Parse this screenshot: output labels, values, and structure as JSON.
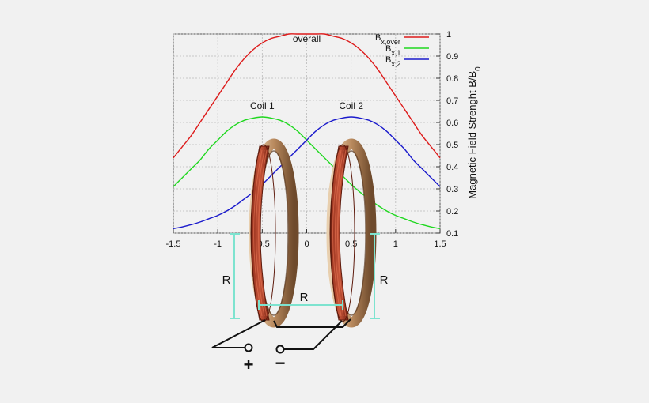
{
  "chart_data": {
    "type": "line",
    "title": "",
    "xlabel": "",
    "ylabel": "Magnetic Field Strenght B/B",
    "ylabel_subscript": "0",
    "xlim": [
      -1.5,
      1.5
    ],
    "ylim": [
      0.1,
      1.0
    ],
    "x_ticks": [
      "-1.5",
      "-1",
      "-0.5",
      "0",
      "0.5",
      "1",
      "1.5"
    ],
    "y_ticks": [
      "0.1",
      "0.2",
      "0.3",
      "0.4",
      "0.5",
      "0.6",
      "0.7",
      "0.8",
      "0.9",
      "1"
    ],
    "grid": true,
    "legend_position": "top-right",
    "x": [
      -1.5,
      -1.4,
      -1.3,
      -1.2,
      -1.1,
      -1.0,
      -0.9,
      -0.8,
      -0.7,
      -0.6,
      -0.5,
      -0.4,
      -0.3,
      -0.2,
      -0.1,
      0.0,
      0.1,
      0.2,
      0.3,
      0.4,
      0.5,
      0.6,
      0.7,
      0.8,
      0.9,
      1.0,
      1.1,
      1.2,
      1.3,
      1.4,
      1.5
    ],
    "series": [
      {
        "name": "B",
        "subscript": "x,over",
        "color": "#dd1a1a",
        "values": [
          0.44,
          0.49,
          0.54,
          0.6,
          0.66,
          0.72,
          0.78,
          0.84,
          0.89,
          0.93,
          0.96,
          0.98,
          0.99,
          1.0,
          1.0,
          1.0,
          1.0,
          1.0,
          0.99,
          0.98,
          0.96,
          0.93,
          0.89,
          0.84,
          0.78,
          0.72,
          0.66,
          0.6,
          0.54,
          0.49,
          0.44
        ]
      },
      {
        "name": "B",
        "subscript": "x,1",
        "color": "#1fd81f",
        "values": [
          0.31,
          0.35,
          0.39,
          0.43,
          0.48,
          0.52,
          0.56,
          0.59,
          0.61,
          0.62,
          0.625,
          0.62,
          0.61,
          0.59,
          0.56,
          0.52,
          0.48,
          0.44,
          0.4,
          0.36,
          0.32,
          0.285,
          0.255,
          0.225,
          0.2,
          0.18,
          0.165,
          0.15,
          0.138,
          0.128,
          0.12
        ]
      },
      {
        "name": "B",
        "subscript": "x,2",
        "color": "#1a1acc",
        "values": [
          0.12,
          0.128,
          0.138,
          0.15,
          0.165,
          0.18,
          0.2,
          0.225,
          0.255,
          0.285,
          0.32,
          0.36,
          0.4,
          0.44,
          0.48,
          0.52,
          0.56,
          0.59,
          0.61,
          0.62,
          0.625,
          0.62,
          0.61,
          0.59,
          0.56,
          0.52,
          0.48,
          0.43,
          0.39,
          0.35,
          0.31
        ]
      }
    ],
    "annotations": [
      {
        "text": "overall",
        "x": 0.0,
        "y": 0.965
      },
      {
        "text": "Coil 1",
        "x": -0.5,
        "y": 0.66
      },
      {
        "text": "Coil 2",
        "x": 0.5,
        "y": 0.66
      }
    ]
  },
  "diagram": {
    "radius_label_left": "R",
    "radius_label_right": "R",
    "separation_label": "R",
    "plus_terminal": "+",
    "minus_terminal": "−"
  },
  "colors": {
    "coil_copper": "#b4482e",
    "coil_frame": "#c49a6c",
    "dimension_lines": "#7de3cf"
  }
}
